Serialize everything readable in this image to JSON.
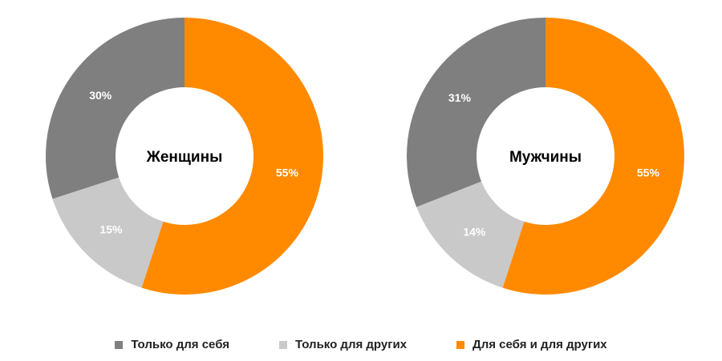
{
  "chart_data": [
    {
      "type": "pie",
      "title": "Женщины",
      "categories": [
        "Для себя и для других",
        "Только для других",
        "Только для себя"
      ],
      "values": [
        55,
        15,
        30
      ],
      "labels": [
        "55%",
        "15%",
        "30%"
      ]
    },
    {
      "type": "pie",
      "title": "Мужчины",
      "categories": [
        "Для себя и для других",
        "Только для других",
        "Только для себя"
      ],
      "values": [
        55,
        14,
        31
      ],
      "labels": [
        "55%",
        "14%",
        "31%"
      ]
    }
  ],
  "colors": {
    "Для себя и для других": "#ff8a00",
    "Только для других": "#c9c9c9",
    "Только для себя": "#7f7f7f"
  },
  "legend": [
    {
      "label": "Только для себя",
      "color": "#7f7f7f"
    },
    {
      "label": "Только для других",
      "color": "#c9c9c9"
    },
    {
      "label": "Для себя и для других",
      "color": "#ff8a00"
    }
  ]
}
